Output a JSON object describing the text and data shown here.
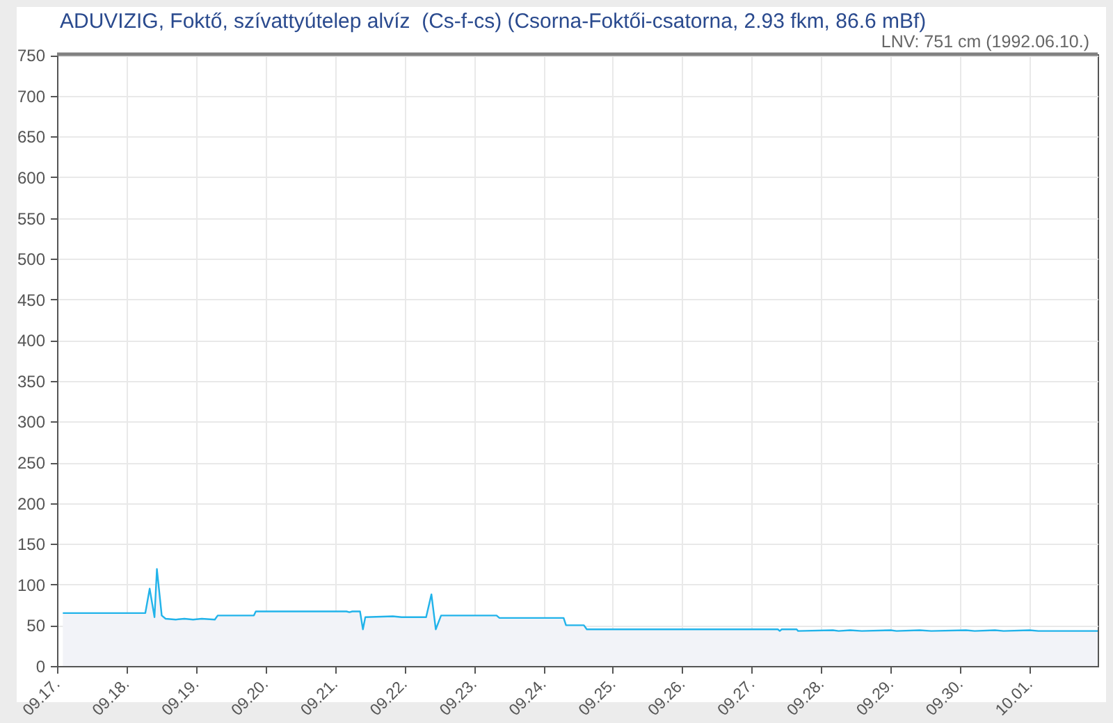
{
  "chart_data": {
    "type": "area",
    "title": "ADUVIZIG, Foktő, szívattyútelep alvíz  (Cs-f-cs) (Csorna-Foktői-csatorna, 2.93 fkm, 86.6 mBf)",
    "series": [
      {
        "color": "#21b3ea",
        "x": [
          "--09-17T02:00",
          "--09-18T06:30",
          "--09-18T08:00",
          "--09-18T09:40",
          "--09-18T10:30",
          "--09-18T12:10",
          "--09-18T13:30",
          "--09-18T17:00",
          "--09-18T20:00",
          "--09-18T23:00",
          "--09-19T02:00",
          "--09-19T06:30",
          "--09-19T07:30",
          "--09-19T20:00",
          "--09-19T20:40",
          "--09-21T04:00",
          "--09-21T05:00",
          "--09-21T06:00",
          "--09-21T08:40",
          "--09-21T09:40",
          "--09-21T10:30",
          "--09-21T20:00",
          "--09-21T23:00",
          "--09-22T07:30",
          "--09-22T09:20",
          "--09-22T10:50",
          "--09-22T12:40",
          "--09-23T07:50",
          "--09-23T08:50",
          "--09-24T07:00",
          "--09-24T07:50",
          "--09-24T14:00",
          "--09-24T15:00",
          "--09-27T09:00",
          "--09-27T09:40",
          "--09-27T10:20",
          "--09-27T15:30",
          "--09-27T16:00",
          "--09-28T04:00",
          "--09-28T06:00",
          "--09-28T10:00",
          "--09-28T14:00",
          "--09-29T00:00",
          "--09-29T02:00",
          "--09-29T10:00",
          "--09-29T14:00",
          "--09-30T02:00",
          "--09-30T05:00",
          "--09-30T12:00",
          "--09-30T15:00",
          "--10-01T00:00",
          "--10-01T03:00",
          "--10-01T23:30"
        ],
        "values": [
          65,
          65,
          95,
          60,
          119,
          62,
          58,
          57,
          58,
          57,
          58,
          57,
          62,
          62,
          67,
          67,
          66,
          67,
          67,
          45,
          60,
          61,
          60,
          60,
          88,
          45,
          62,
          62,
          59,
          59,
          50,
          50,
          45,
          45,
          43,
          45,
          45,
          43,
          44,
          43,
          44,
          43,
          44,
          43,
          44,
          43,
          44,
          43,
          44,
          43,
          44,
          43,
          43
        ]
      }
    ],
    "xlim": [
      "--09-17T00:00",
      "--10-01T23:30"
    ],
    "xticks": [
      {
        "value": "--09-17",
        "label": "09.17."
      },
      {
        "value": "--09-18",
        "label": "09.18."
      },
      {
        "value": "--09-19",
        "label": "09.19."
      },
      {
        "value": "--09-20",
        "label": "09.20."
      },
      {
        "value": "--09-21",
        "label": "09.21."
      },
      {
        "value": "--09-22",
        "label": "09.22."
      },
      {
        "value": "--09-23",
        "label": "09.23."
      },
      {
        "value": "--09-24",
        "label": "09.24."
      },
      {
        "value": "--09-25",
        "label": "09.25."
      },
      {
        "value": "--09-26",
        "label": "09.26."
      },
      {
        "value": "--09-27",
        "label": "09.27."
      },
      {
        "value": "--09-28",
        "label": "09.28."
      },
      {
        "value": "--09-29",
        "label": "09.29."
      },
      {
        "value": "--09-30",
        "label": "09.30."
      },
      {
        "value": "--10-01",
        "label": "10.01."
      }
    ],
    "ylim": [
      0,
      751
    ],
    "yticks": [
      0,
      50,
      100,
      150,
      200,
      250,
      300,
      350,
      400,
      450,
      500,
      550,
      600,
      650,
      700,
      750
    ],
    "ref_lines": [
      {
        "axis": "y",
        "value": 751,
        "label": "LNV: 751 cm (1992.06.10.)",
        "color": "#808080"
      }
    ],
    "grid": true
  }
}
